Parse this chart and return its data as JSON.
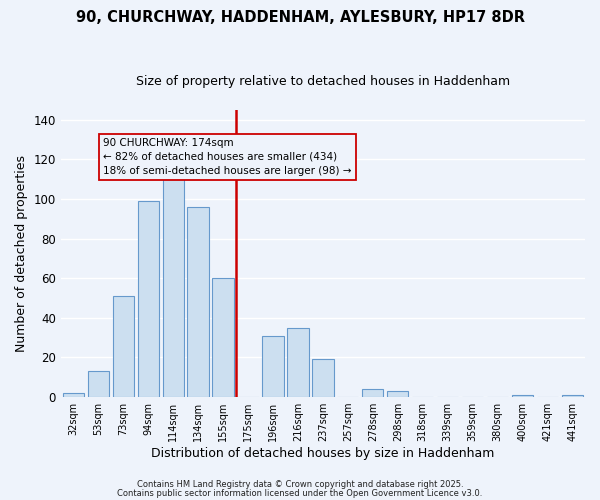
{
  "title": "90, CHURCHWAY, HADDENHAM, AYLESBURY, HP17 8DR",
  "subtitle": "Size of property relative to detached houses in Haddenham",
  "xlabel": "Distribution of detached houses by size in Haddenham",
  "ylabel": "Number of detached properties",
  "bar_labels": [
    "32sqm",
    "53sqm",
    "73sqm",
    "94sqm",
    "114sqm",
    "134sqm",
    "155sqm",
    "175sqm",
    "196sqm",
    "216sqm",
    "237sqm",
    "257sqm",
    "278sqm",
    "298sqm",
    "318sqm",
    "339sqm",
    "359sqm",
    "380sqm",
    "400sqm",
    "421sqm",
    "441sqm"
  ],
  "bar_values": [
    2,
    13,
    51,
    99,
    118,
    96,
    60,
    0,
    31,
    35,
    19,
    0,
    4,
    3,
    0,
    0,
    0,
    0,
    1,
    0,
    1
  ],
  "bar_color": "#ccdff0",
  "bar_edge_color": "#6699cc",
  "vline_x_index": 7,
  "vline_color": "#cc0000",
  "annotation_line1": "90 CHURCHWAY: 174sqm",
  "annotation_line2": "← 82% of detached houses are smaller (434)",
  "annotation_line3": "18% of semi-detached houses are larger (98) →",
  "annotation_box_edge": "#cc0000",
  "ylim": [
    0,
    145
  ],
  "yticks": [
    0,
    20,
    40,
    60,
    80,
    100,
    120,
    140
  ],
  "footnote1": "Contains HM Land Registry data © Crown copyright and database right 2025.",
  "footnote2": "Contains public sector information licensed under the Open Government Licence v3.0.",
  "background_color": "#eef3fb",
  "grid_color": "#ffffff"
}
